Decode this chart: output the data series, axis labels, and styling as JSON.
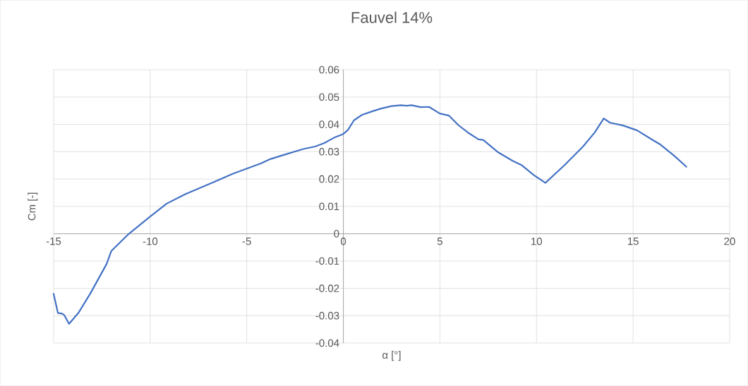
{
  "chart_data": {
    "type": "line",
    "title": "Fauvel 14%",
    "xlabel": "α [°]",
    "ylabel": "Cm [-]",
    "x": [
      -15,
      -14.78,
      -14.57,
      -14.45,
      -14.2,
      -13.72,
      -13.11,
      -12.26,
      -12.01,
      -11.1,
      -10,
      -9.15,
      -8.17,
      -6.71,
      -5.73,
      -5,
      -4.27,
      -3.78,
      -3.05,
      -2.07,
      -1.46,
      -0.98,
      -0.49,
      0,
      0.24,
      0.55,
      0.97,
      1.46,
      1.95,
      2.49,
      2.98,
      3.28,
      3.53,
      4.01,
      4.44,
      4.99,
      5.47,
      5.96,
      6.45,
      7.0,
      7.24,
      8.03,
      8.76,
      9.25,
      9.85,
      10.46,
      11.44,
      12.41,
      13.02,
      13.48,
      13.81,
      14.48,
      15.21,
      16.06,
      16.42,
      17.15,
      17.76
    ],
    "values": [
      -0.022,
      -0.029,
      -0.0292,
      -0.0298,
      -0.033,
      -0.029,
      -0.022,
      -0.0111,
      -0.0063,
      0.0,
      0.0063,
      0.011,
      0.0145,
      0.0189,
      0.0219,
      0.0238,
      0.0257,
      0.0273,
      0.0289,
      0.031,
      0.0319,
      0.0332,
      0.0351,
      0.0365,
      0.038,
      0.0415,
      0.0435,
      0.0447,
      0.0458,
      0.0467,
      0.047,
      0.0468,
      0.047,
      0.0463,
      0.0464,
      0.044,
      0.0432,
      0.0397,
      0.037,
      0.0345,
      0.0343,
      0.0297,
      0.0267,
      0.025,
      0.0215,
      0.0186,
      0.025,
      0.0319,
      0.0371,
      0.0422,
      0.0406,
      0.0396,
      0.0378,
      0.0341,
      0.0326,
      0.0284,
      0.0245
    ],
    "color": "#4472c4",
    "xlim": [
      -15,
      20
    ],
    "ylim": [
      -0.04,
      0.06
    ],
    "xticks": [
      -15,
      -10,
      -5,
      0,
      5,
      10,
      15,
      20
    ],
    "yticks": [
      -0.04,
      -0.03,
      -0.02,
      -0.01,
      0,
      0.01,
      0.02,
      0.03,
      0.04,
      0.05,
      0.06
    ],
    "grid": true,
    "marker": "none",
    "line_style": "solid"
  }
}
